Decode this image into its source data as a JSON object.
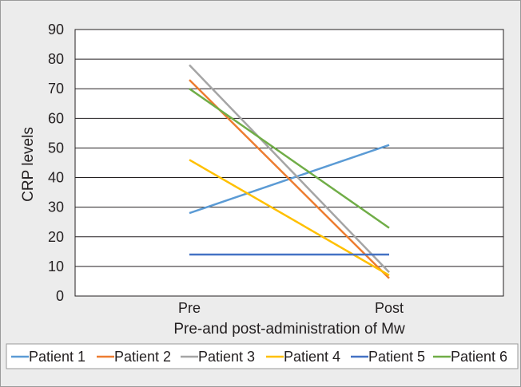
{
  "chart_data": {
    "type": "line",
    "title": "",
    "xlabel": "Pre-and post-administration of Mw",
    "ylabel": "CRP levels",
    "categories": [
      "Pre",
      "Post"
    ],
    "ylim": [
      0,
      90
    ],
    "yticks": [
      "0",
      "10",
      "20",
      "30",
      "40",
      "50",
      "60",
      "70",
      "80",
      "90"
    ],
    "grid": true,
    "legend_position": "bottom",
    "series": [
      {
        "name": "Patient 1",
        "values": [
          28,
          51
        ],
        "color": "#5b9bd5"
      },
      {
        "name": "Patient 2",
        "values": [
          73,
          6
        ],
        "color": "#ed7d31"
      },
      {
        "name": "Patient 3",
        "values": [
          78,
          8
        ],
        "color": "#a5a5a5"
      },
      {
        "name": "Patient 4",
        "values": [
          46,
          7
        ],
        "color": "#ffc000"
      },
      {
        "name": "Patient 5",
        "values": [
          14,
          14
        ],
        "color": "#4472c4"
      },
      {
        "name": "Patient 6",
        "values": [
          70,
          23
        ],
        "color": "#70ad47"
      }
    ]
  }
}
